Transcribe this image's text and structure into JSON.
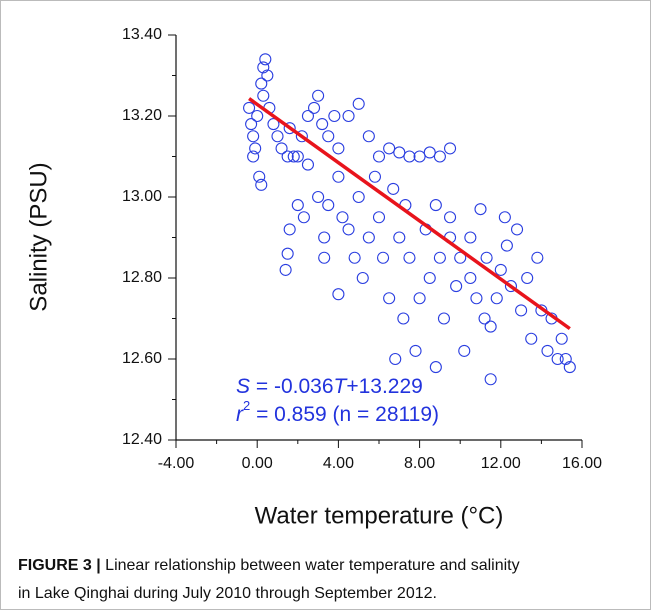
{
  "chart_data": {
    "type": "scatter",
    "xlabel": "Water temperature (°C)",
    "ylabel": "Salinity (PSU)",
    "annotation": {
      "line1": [
        "S",
        " = -0.036",
        "T",
        "+13.229"
      ],
      "line2": [
        "r",
        "2",
        " = 0.859 (n = 28119)"
      ],
      "color": "#2233dd"
    },
    "color": "#2a3ee0",
    "x": [
      -0.4,
      -0.3,
      -0.2,
      -0.1,
      0,
      0.2,
      0.3,
      0.4,
      0.5,
      0.3,
      0.1,
      0.2,
      -0.2,
      0.6,
      0.8,
      1,
      1.2,
      1.5,
      1.8,
      2,
      1.6,
      2.2,
      2.5,
      2.8,
      3,
      3.2,
      3.5,
      3.8,
      4,
      4.5,
      5,
      5.5,
      6,
      6.5,
      7,
      7.5,
      8,
      8.5,
      9,
      9.5,
      2,
      2.3,
      2.5,
      3,
      3.3,
      3.5,
      4,
      4.2,
      4.5,
      4.8,
      5,
      5.2,
      5.5,
      6,
      6.2,
      6.5,
      7,
      7.2,
      7.5,
      7.8,
      8,
      8.3,
      8.5,
      9,
      9.2,
      9.5,
      10,
      10.2,
      10.5,
      11,
      11.2,
      11.5,
      11.8,
      12,
      12.3,
      12.5,
      12.8,
      13,
      13.3,
      13.5,
      14,
      14.3,
      14.5,
      15,
      15.2,
      15.4,
      14.8,
      11.5,
      8.8,
      6.8,
      4,
      1.6,
      1.5,
      1.4,
      3.3,
      10.8,
      9.8,
      11.3,
      7.3,
      6.7,
      5.8,
      8.8,
      9.5,
      10.5,
      12.2,
      13.8
    ],
    "values": [
      13.22,
      13.18,
      13.15,
      13.12,
      13.2,
      13.28,
      13.32,
      13.34,
      13.3,
      13.25,
      13.05,
      13.03,
      13.1,
      13.22,
      13.18,
      13.15,
      13.12,
      13.1,
      13.1,
      13.1,
      13.17,
      13.15,
      13.2,
      13.22,
      13.25,
      13.18,
      13.15,
      13.2,
      13.12,
      13.2,
      13.23,
      13.15,
      13.1,
      13.12,
      13.11,
      13.1,
      13.1,
      13.11,
      13.1,
      13.12,
      12.98,
      12.95,
      13.08,
      13.0,
      12.9,
      12.98,
      13.05,
      12.95,
      12.92,
      12.85,
      13.0,
      12.8,
      12.9,
      12.95,
      12.85,
      12.75,
      12.9,
      12.7,
      12.85,
      12.62,
      12.75,
      12.92,
      12.8,
      12.85,
      12.7,
      12.9,
      12.85,
      12.62,
      12.8,
      12.97,
      12.7,
      12.68,
      12.75,
      12.82,
      12.88,
      12.78,
      12.92,
      12.72,
      12.8,
      12.65,
      12.72,
      12.62,
      12.7,
      12.65,
      12.6,
      12.58,
      12.6,
      12.55,
      12.58,
      12.6,
      12.76,
      12.92,
      12.86,
      12.82,
      12.85,
      12.75,
      12.78,
      12.85,
      12.98,
      13.02,
      13.05,
      12.98,
      12.95,
      12.9,
      12.95,
      12.85
    ],
    "fit": {
      "x": [
        -0.4,
        15.4
      ],
      "values": [
        13.243,
        12.675
      ],
      "color": "#e8141c"
    },
    "xlim": [
      -4,
      16
    ],
    "xticks": [
      {
        "value": -4,
        "label": "-4.00"
      },
      {
        "value": 0,
        "label": "0.00"
      },
      {
        "value": 4,
        "label": "4.00"
      },
      {
        "value": 8,
        "label": "8.00"
      },
      {
        "value": 12,
        "label": "12.00"
      },
      {
        "value": 16,
        "label": "16.00"
      }
    ],
    "xminor": [
      -2,
      2,
      6,
      10,
      14
    ],
    "ylim": [
      12.4,
      13.4
    ],
    "yticks": [
      {
        "value": 12.4,
        "label": "12.40"
      },
      {
        "value": 12.6,
        "label": "12.60"
      },
      {
        "value": 12.8,
        "label": "12.80"
      },
      {
        "value": 13.0,
        "label": "13.00"
      },
      {
        "value": 13.2,
        "label": "13.20"
      },
      {
        "value": 13.4,
        "label": "13.40"
      }
    ],
    "yminor": [
      12.5,
      12.7,
      12.9,
      13.1,
      13.3
    ]
  },
  "caption": {
    "label": "FIGURE 3 |",
    "lines": [
      " Linear relationship between water temperature and salinity",
      "in Lake Qinghai during July 2010 through September 2012."
    ]
  }
}
